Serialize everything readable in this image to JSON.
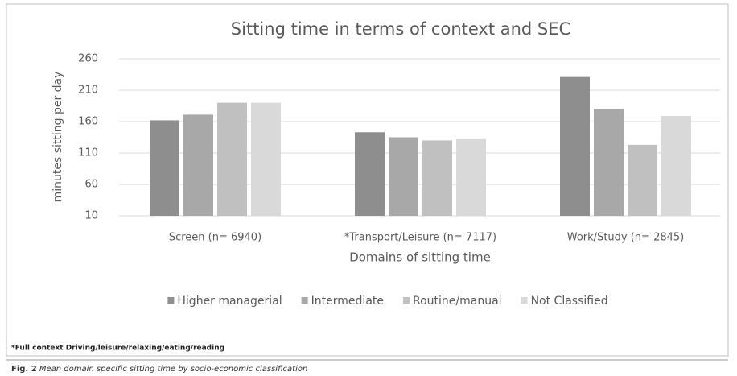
{
  "chart_data": {
    "type": "bar",
    "title": "Sitting time in terms of context and SEC",
    "y_label": "minutes sitting per day",
    "x_label": "Domains of sitting time",
    "categories": [
      "Screen (n= 6940)",
      "*Transport/Leisure (n= 7117)",
      "Work/Study (n= 2845)"
    ],
    "series": [
      {
        "name": "Higher managerial",
        "color": "#8e8e8e",
        "values": [
          162,
          143,
          231
        ]
      },
      {
        "name": "Intermediate",
        "color": "#a8a8a8",
        "values": [
          171,
          135,
          180
        ]
      },
      {
        "name": "Routine/manual",
        "color": "#c0c0c0",
        "values": [
          190,
          130,
          123
        ]
      },
      {
        "name": "Not Classified",
        "color": "#d9d9d9",
        "values": [
          190,
          132,
          169
        ]
      }
    ],
    "ylim": [
      10,
      260
    ],
    "yticks": [
      10,
      60,
      110,
      160,
      210,
      260
    ],
    "grid": true,
    "legend": "bottom"
  },
  "footnote": "*Full context Driving/leisure/relaxing/eating/reading",
  "caption": {
    "label": "Fig. 2",
    "text": "Mean domain specific sitting time by socio-economic classification"
  }
}
